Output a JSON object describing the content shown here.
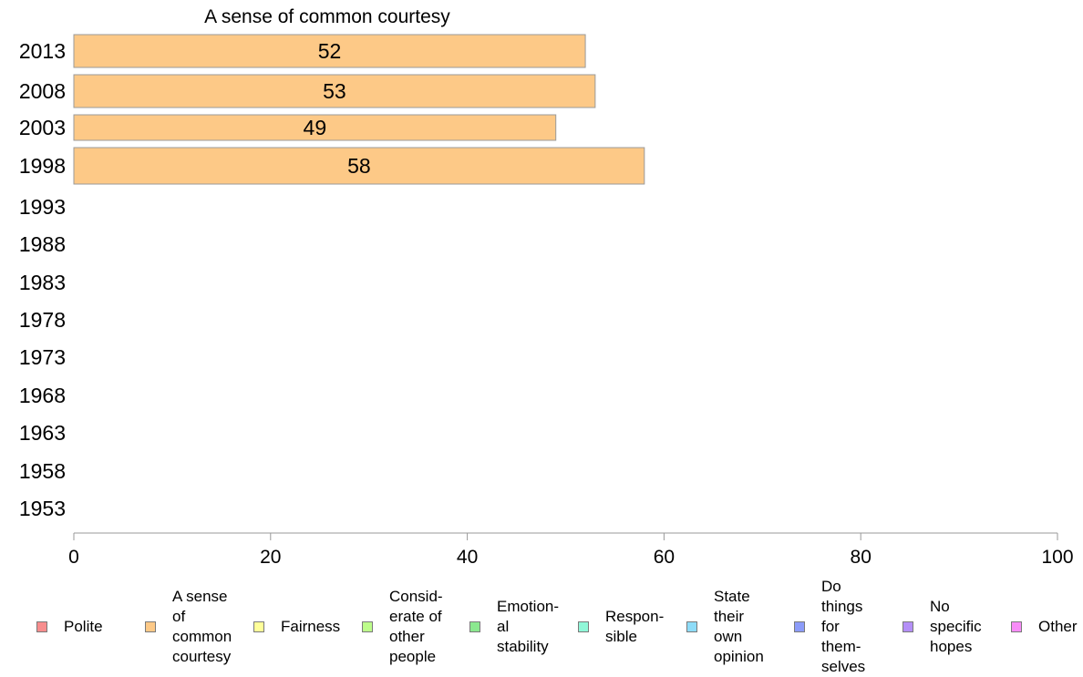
{
  "chart_data": {
    "type": "bar",
    "orientation": "horizontal",
    "title": "A sense of common courtesy",
    "categories": [
      "2013",
      "2008",
      "2003",
      "1998",
      "1993",
      "1988",
      "1983",
      "1978",
      "1973",
      "1968",
      "1963",
      "1958",
      "1953"
    ],
    "series": [
      {
        "name": "A sense of common courtesy",
        "color": "#fdc987",
        "values": [
          52,
          53,
          49,
          58,
          null,
          null,
          null,
          null,
          null,
          null,
          null,
          null,
          null
        ]
      }
    ],
    "xlim": [
      0,
      100
    ],
    "xticks": [
      0,
      20,
      40,
      60,
      80,
      100
    ],
    "data_labels": true,
    "grid": false,
    "legend_position": "bottom",
    "legend": [
      {
        "label": "Polite",
        "color": "#f78d8d"
      },
      {
        "label": "A sense\nof\ncommon\ncourtesy",
        "color": "#fdc987"
      },
      {
        "label": "Fairness",
        "color": "#ffff99"
      },
      {
        "label": "Consid-\nerate of\nother\npeople",
        "color": "#bdfd8b"
      },
      {
        "label": "Emotion-\nal\nstability",
        "color": "#8be88f"
      },
      {
        "label": "Respon-\nsible",
        "color": "#90f7d8"
      },
      {
        "label": "State\ntheir\nown\nopinion",
        "color": "#8edcf8"
      },
      {
        "label": "Do\nthings\nfor\nthem-\nselves",
        "color": "#8c9cf9"
      },
      {
        "label": "No\nspecific\nhopes",
        "color": "#b48ff7"
      },
      {
        "label": "Other",
        "color": "#f78cf7"
      }
    ]
  }
}
